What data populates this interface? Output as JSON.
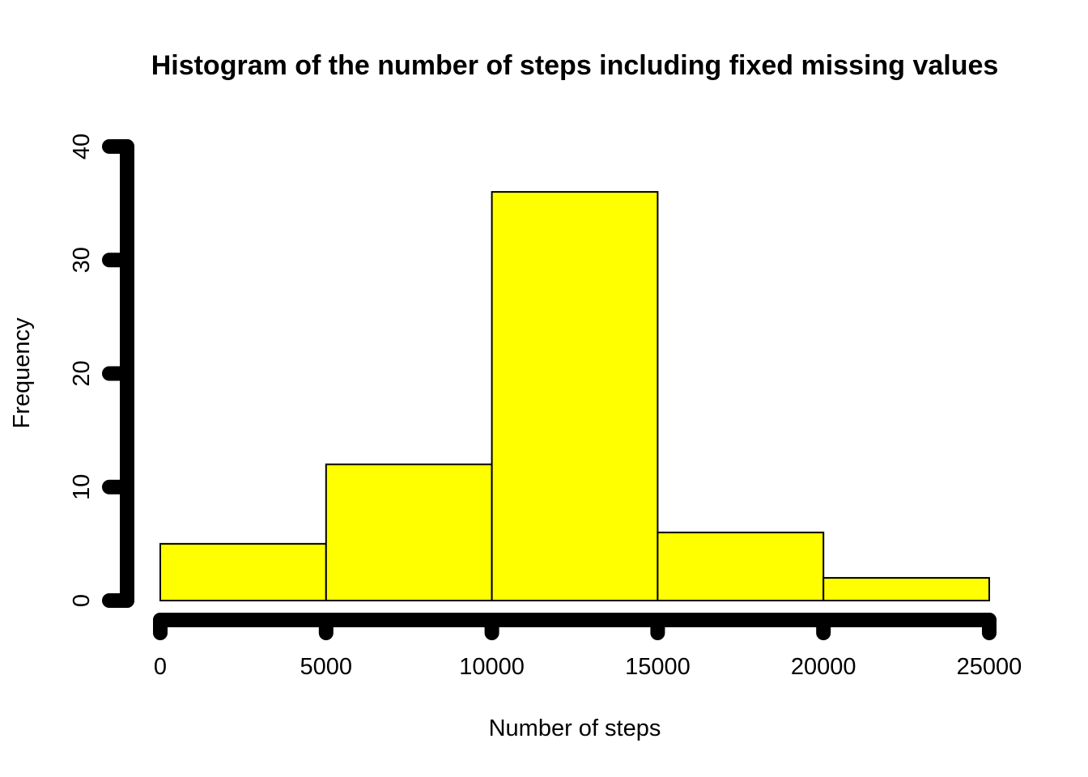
{
  "chart_data": {
    "type": "bar",
    "title": "Histogram of the number of steps including fixed missing values",
    "xlabel": "Number of steps",
    "ylabel": "Frequency",
    "bins": [
      {
        "start": 0,
        "end": 5000,
        "count": 5
      },
      {
        "start": 5000,
        "end": 10000,
        "count": 12
      },
      {
        "start": 10000,
        "end": 15000,
        "count": 36
      },
      {
        "start": 15000,
        "end": 20000,
        "count": 6
      },
      {
        "start": 20000,
        "end": 25000,
        "count": 2
      }
    ],
    "xlim": [
      0,
      25000
    ],
    "ylim": [
      0,
      40
    ],
    "x_ticks": [
      0,
      5000,
      10000,
      15000,
      20000,
      25000
    ],
    "y_ticks": [
      0,
      10,
      20,
      30,
      40
    ],
    "bar_color": "#ffff00",
    "bar_edge_color": "#000000",
    "axis_color": "#000000",
    "grid": false
  }
}
